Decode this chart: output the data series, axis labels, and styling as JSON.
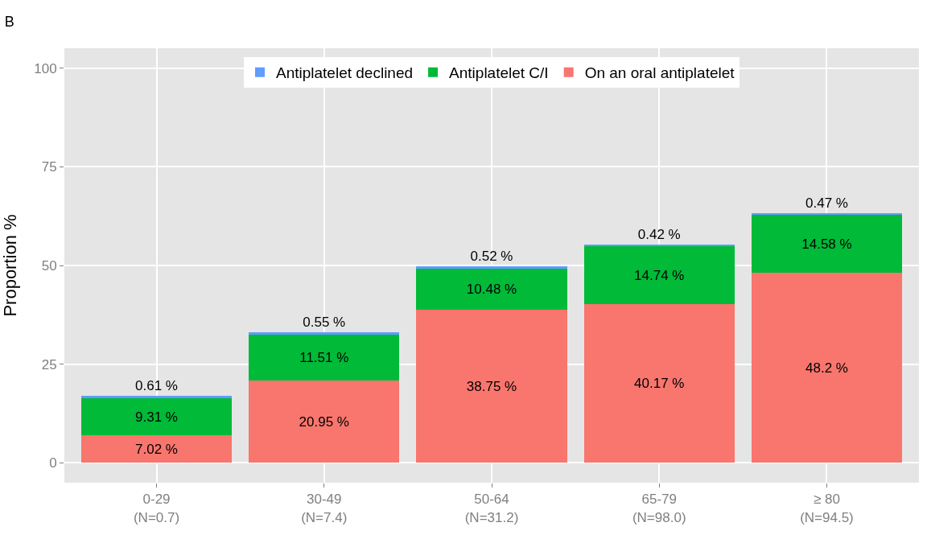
{
  "chart_data": {
    "type": "bar",
    "title": "B",
    "ylabel": "Proportion %",
    "stacked": true,
    "categories": [
      "0-29\n(N=0.7)",
      "30-49\n(N=7.4)",
      "50-64\n(N=31.2)",
      "65-79\n(N=98.0)",
      "≥ 80\n(N=94.5)"
    ],
    "series": [
      {
        "name": "On an oral antiplatelet",
        "color": "#f8766d",
        "values": [
          7.02,
          20.95,
          38.75,
          40.17,
          48.2
        ],
        "value_labels": [
          "7.02 %",
          "20.95 %",
          "38.75 %",
          "40.17 %",
          "48.2 %"
        ]
      },
      {
        "name": "Antiplatelet C/I",
        "color": "#00ba38",
        "values": [
          9.31,
          11.51,
          10.48,
          14.74,
          14.58
        ],
        "value_labels": [
          "9.31 %",
          "11.51 %",
          "10.48 %",
          "14.74 %",
          "14.58 %"
        ]
      },
      {
        "name": "Antiplatelet declined",
        "color": "#619cff",
        "values": [
          0.61,
          0.55,
          0.52,
          0.42,
          0.47
        ],
        "value_labels": [
          "0.61 %",
          "0.55 %",
          "0.52 %",
          "0.42 %",
          "0.47 %"
        ]
      }
    ],
    "ylim": [
      -5,
      105
    ],
    "yticks": [
      0,
      25,
      50,
      75,
      100
    ],
    "grid": true,
    "legend": "top"
  }
}
